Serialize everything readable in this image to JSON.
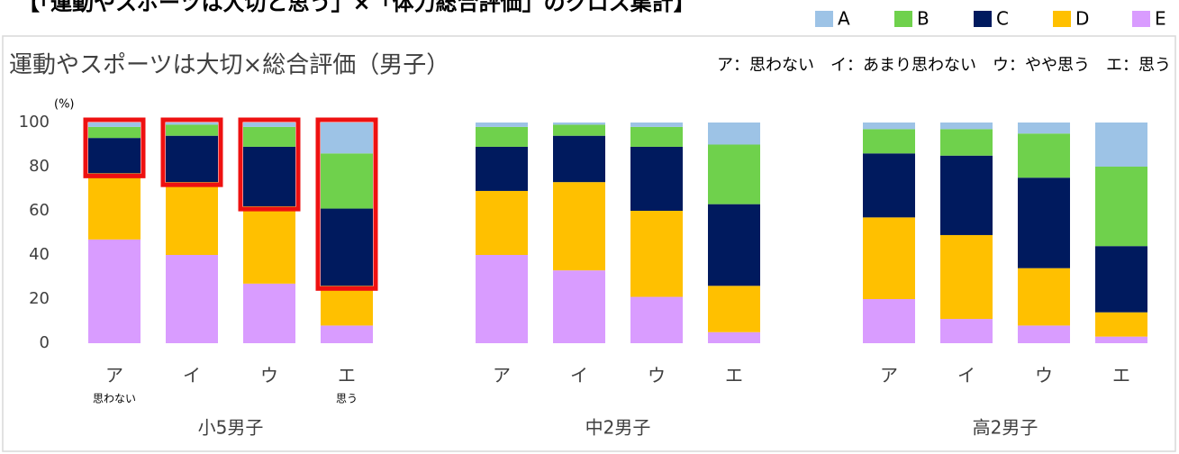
{
  "chart_data": {
    "type": "stacked_bar",
    "header": "【「運動やスポーツは大切と思う」×「体力総合評価」のクロス集計】",
    "title": "運動やスポーツは大切×総合評価（男子）",
    "annotation": "ア：思わない　イ：あまり思わない　ウ：やや思う　エ：思う",
    "y_unit": "(%)",
    "categories": [
      "ア",
      "イ",
      "ウ",
      "エ",
      "ア",
      "イ",
      "ウ",
      "エ",
      "ア",
      "イ",
      "ウ",
      "エ"
    ],
    "category_notes": [
      "思わない",
      null,
      null,
      "思う",
      null,
      null,
      null,
      null,
      null,
      null,
      null,
      null
    ],
    "groups": [
      "小5男子",
      "中2男子",
      "高2男子"
    ],
    "series": [
      {
        "name": "A",
        "color": "#9dc3e6",
        "values": [
          2,
          1,
          2,
          14,
          2,
          1,
          2,
          10,
          3,
          3,
          5,
          20
        ]
      },
      {
        "name": "B",
        "color": "#6fd14c",
        "values": [
          5,
          5,
          9,
          25,
          9,
          5,
          9,
          27,
          11,
          12,
          20,
          36
        ]
      },
      {
        "name": "C",
        "color": "#001a5e",
        "values": [
          16,
          21,
          27,
          35,
          20,
          21,
          29,
          37,
          29,
          36,
          41,
          30
        ]
      },
      {
        "name": "D",
        "color": "#ffc000",
        "values": [
          30,
          33,
          35,
          18,
          29,
          40,
          39,
          21,
          37,
          38,
          26,
          11
        ]
      },
      {
        "name": "E",
        "color": "#d99cff",
        "values": [
          47,
          40,
          27,
          8,
          40,
          33,
          21,
          5,
          20,
          11,
          8,
          3
        ]
      }
    ],
    "ylim": [
      0,
      100
    ],
    "yticks": [
      0,
      20,
      40,
      60,
      80,
      100
    ],
    "grid": false,
    "legend": "top-right",
    "highlight": {
      "bars": [
        0,
        1,
        2,
        3
      ],
      "series": [
        "A",
        "B",
        "C"
      ],
      "color": "#ee1111"
    }
  }
}
